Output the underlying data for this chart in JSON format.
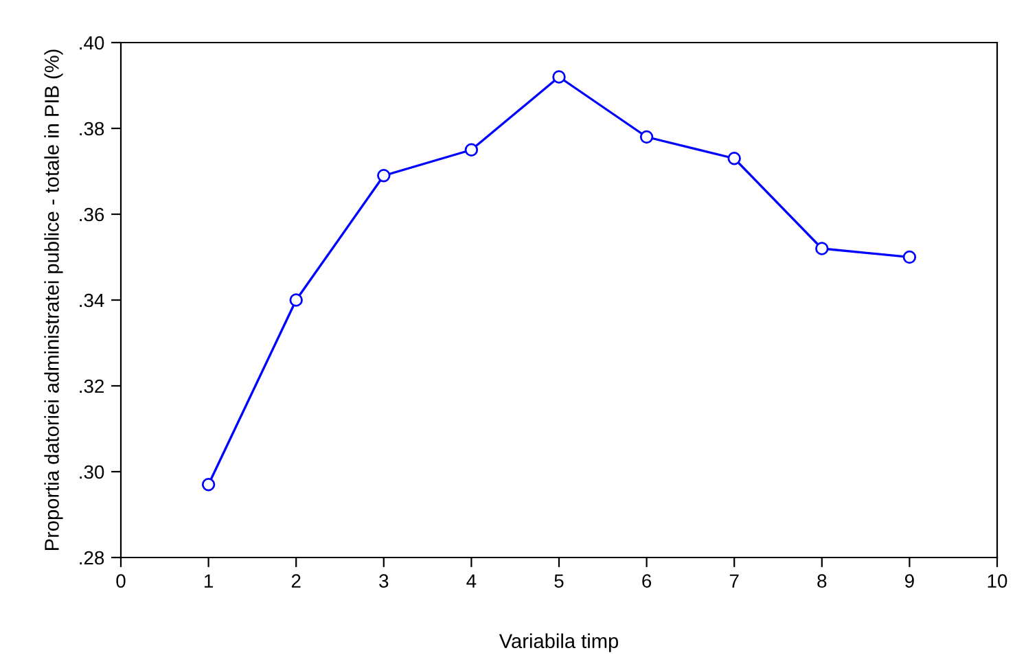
{
  "chart_data": {
    "type": "line",
    "xlabel": "Variabila timp",
    "ylabel": "Proportia datoriei administratei publice - totale in PIB (%)",
    "x": [
      1,
      2,
      3,
      4,
      5,
      6,
      7,
      8,
      9
    ],
    "series": [
      {
        "color": "#0000ff",
        "values": [
          0.297,
          0.34,
          0.369,
          0.375,
          0.392,
          0.378,
          0.373,
          0.352,
          0.35
        ]
      }
    ],
    "xlim": [
      0,
      10
    ],
    "xticks": [
      0,
      1,
      2,
      3,
      4,
      5,
      6,
      7,
      8,
      9,
      10
    ],
    "ylim": [
      0.28,
      0.4
    ],
    "yticks": [
      {
        "value": 0.28,
        "label": ".28"
      },
      {
        "value": 0.3,
        "label": ".30"
      },
      {
        "value": 0.32,
        "label": ".32"
      },
      {
        "value": 0.34,
        "label": ".34"
      },
      {
        "value": 0.36,
        "label": ".36"
      },
      {
        "value": 0.38,
        "label": ".38"
      },
      {
        "value": 0.4,
        "label": ".40"
      }
    ],
    "marker": "circle",
    "line_style": "solid"
  }
}
